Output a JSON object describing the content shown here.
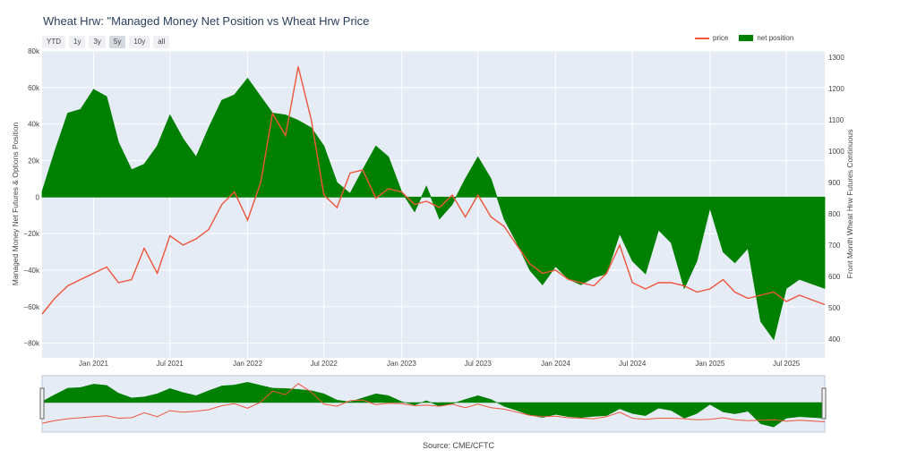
{
  "title": "Wheat Hrw: \"Managed Money Net Position vs Wheat Hrw Price",
  "range_buttons": [
    "YTD",
    "1y",
    "3y",
    "5y",
    "10y",
    "all"
  ],
  "active_range": "5y",
  "legend": [
    {
      "name": "price",
      "color": "#ef553b",
      "kind": "line"
    },
    {
      "name": "net position",
      "color": "#008000",
      "kind": "fill"
    }
  ],
  "source": "Source: CME/CFTC",
  "chart_data": {
    "type": "line",
    "title": "Wheat Hrw: \"Managed Money Net Position vs Wheat Hrw Price",
    "ylabel_left": "Managed Money Net Futures & Options Position",
    "ylabel_right": "Front Month Wheat Hrw Futures Continuous",
    "xlim": [
      "2020-09-01",
      "2025-09-30"
    ],
    "ylim_left": [
      -88000,
      80000
    ],
    "ylim_right": [
      340,
      1320
    ],
    "grid": true,
    "legend_position": "top-right",
    "x_ticks": [
      {
        "date": "2021-01-01",
        "label": "Jan 2021"
      },
      {
        "date": "2021-07-01",
        "label": "Jul 2021"
      },
      {
        "date": "2022-01-01",
        "label": "Jan 2022"
      },
      {
        "date": "2022-07-01",
        "label": "Jul 2022"
      },
      {
        "date": "2023-01-01",
        "label": "Jan 2023"
      },
      {
        "date": "2023-07-01",
        "label": "Jul 2023"
      },
      {
        "date": "2024-01-01",
        "label": "Jan 2024"
      },
      {
        "date": "2024-07-01",
        "label": "Jul 2024"
      },
      {
        "date": "2025-01-01",
        "label": "Jan 2025"
      },
      {
        "date": "2025-07-01",
        "label": "Jul 2025"
      }
    ],
    "y_left_ticks": [
      {
        "value": 80000,
        "label": "80k"
      },
      {
        "value": 60000,
        "label": "60k"
      },
      {
        "value": 40000,
        "label": "40k"
      },
      {
        "value": 20000,
        "label": "20k"
      },
      {
        "value": 0,
        "label": "0"
      },
      {
        "value": -20000,
        "label": "−20k"
      },
      {
        "value": -40000,
        "label": "−40k"
      },
      {
        "value": -60000,
        "label": "−60k"
      },
      {
        "value": -80000,
        "label": "−80k"
      }
    ],
    "y_right_ticks": [
      {
        "value": 1300,
        "label": "1300"
      },
      {
        "value": 1200,
        "label": "1200"
      },
      {
        "value": 1100,
        "label": "1100"
      },
      {
        "value": 1000,
        "label": "1000"
      },
      {
        "value": 900,
        "label": "900"
      },
      {
        "value": 800,
        "label": "800"
      },
      {
        "value": 700,
        "label": "700"
      },
      {
        "value": 600,
        "label": "600"
      },
      {
        "value": 500,
        "label": "500"
      },
      {
        "value": 400,
        "label": "400"
      }
    ],
    "series": [
      {
        "name": "net position",
        "axis": "left",
        "style": "fill-to-zero",
        "color": "#008000",
        "x": [
          "2020-09-01",
          "2020-10-01",
          "2020-11-01",
          "2020-12-01",
          "2021-01-01",
          "2021-02-01",
          "2021-03-01",
          "2021-04-01",
          "2021-05-01",
          "2021-06-01",
          "2021-07-01",
          "2021-08-01",
          "2021-09-01",
          "2021-10-01",
          "2021-11-01",
          "2021-12-01",
          "2022-01-01",
          "2022-02-01",
          "2022-03-01",
          "2022-04-01",
          "2022-05-01",
          "2022-06-01",
          "2022-07-01",
          "2022-08-01",
          "2022-09-01",
          "2022-10-01",
          "2022-11-01",
          "2022-12-01",
          "2023-01-01",
          "2023-02-01",
          "2023-03-01",
          "2023-04-01",
          "2023-05-01",
          "2023-06-01",
          "2023-07-01",
          "2023-08-01",
          "2023-09-01",
          "2023-10-01",
          "2023-11-01",
          "2023-12-01",
          "2024-01-01",
          "2024-02-01",
          "2024-03-01",
          "2024-04-01",
          "2024-05-01",
          "2024-06-01",
          "2024-07-01",
          "2024-08-01",
          "2024-09-01",
          "2024-10-01",
          "2024-11-01",
          "2024-12-01",
          "2025-01-01",
          "2025-02-01",
          "2025-03-01",
          "2025-04-01",
          "2025-05-01",
          "2025-06-01",
          "2025-07-01",
          "2025-08-01",
          "2025-09-30"
        ],
        "values": [
          3000,
          25000,
          46000,
          48000,
          59000,
          55000,
          30000,
          15000,
          18000,
          28000,
          45000,
          32000,
          22000,
          38000,
          53000,
          56000,
          65000,
          55000,
          46000,
          45000,
          42000,
          38000,
          28000,
          8000,
          2000,
          15000,
          28000,
          22000,
          3000,
          -8000,
          6000,
          -12000,
          -4000,
          10000,
          22000,
          10000,
          -12000,
          -25000,
          -40000,
          -48000,
          -38000,
          -45000,
          -48000,
          -44000,
          -42000,
          -20000,
          -35000,
          -42000,
          -18000,
          -25000,
          -50000,
          -35000,
          -6000,
          -30000,
          -36000,
          -28000,
          -68000,
          -78000,
          -50000,
          -45000,
          -50000
        ]
      },
      {
        "name": "price",
        "axis": "right",
        "style": "line",
        "color": "#ef553b",
        "x": [
          "2020-09-01",
          "2020-10-01",
          "2020-11-01",
          "2020-12-01",
          "2021-01-01",
          "2021-02-01",
          "2021-03-01",
          "2021-04-01",
          "2021-05-01",
          "2021-06-01",
          "2021-07-01",
          "2021-08-01",
          "2021-09-01",
          "2021-10-01",
          "2021-11-01",
          "2021-12-01",
          "2022-01-01",
          "2022-02-01",
          "2022-03-01",
          "2022-04-01",
          "2022-05-01",
          "2022-06-01",
          "2022-07-01",
          "2022-08-01",
          "2022-09-01",
          "2022-10-01",
          "2022-11-01",
          "2022-12-01",
          "2023-01-01",
          "2023-02-01",
          "2023-03-01",
          "2023-04-01",
          "2023-05-01",
          "2023-06-01",
          "2023-07-01",
          "2023-08-01",
          "2023-09-01",
          "2023-10-01",
          "2023-11-01",
          "2023-12-01",
          "2024-01-01",
          "2024-02-01",
          "2024-03-01",
          "2024-04-01",
          "2024-05-01",
          "2024-06-01",
          "2024-07-01",
          "2024-08-01",
          "2024-09-01",
          "2024-10-01",
          "2024-11-01",
          "2024-12-01",
          "2025-01-01",
          "2025-02-01",
          "2025-03-01",
          "2025-04-01",
          "2025-05-01",
          "2025-06-01",
          "2025-07-01",
          "2025-08-01",
          "2025-09-30"
        ],
        "values": [
          480,
          530,
          570,
          590,
          610,
          630,
          580,
          590,
          690,
          610,
          730,
          700,
          720,
          750,
          830,
          870,
          780,
          900,
          1120,
          1050,
          1270,
          1100,
          860,
          820,
          930,
          940,
          850,
          880,
          870,
          830,
          840,
          820,
          860,
          790,
          860,
          790,
          760,
          700,
          640,
          610,
          620,
          590,
          580,
          570,
          610,
          700,
          580,
          560,
          580,
          580,
          570,
          550,
          560,
          590,
          550,
          530,
          540,
          550,
          520,
          540,
          510
        ]
      }
    ],
    "range_slider": {
      "selected_from": "2020-09-01",
      "selected_to": "2025-09-30"
    }
  }
}
